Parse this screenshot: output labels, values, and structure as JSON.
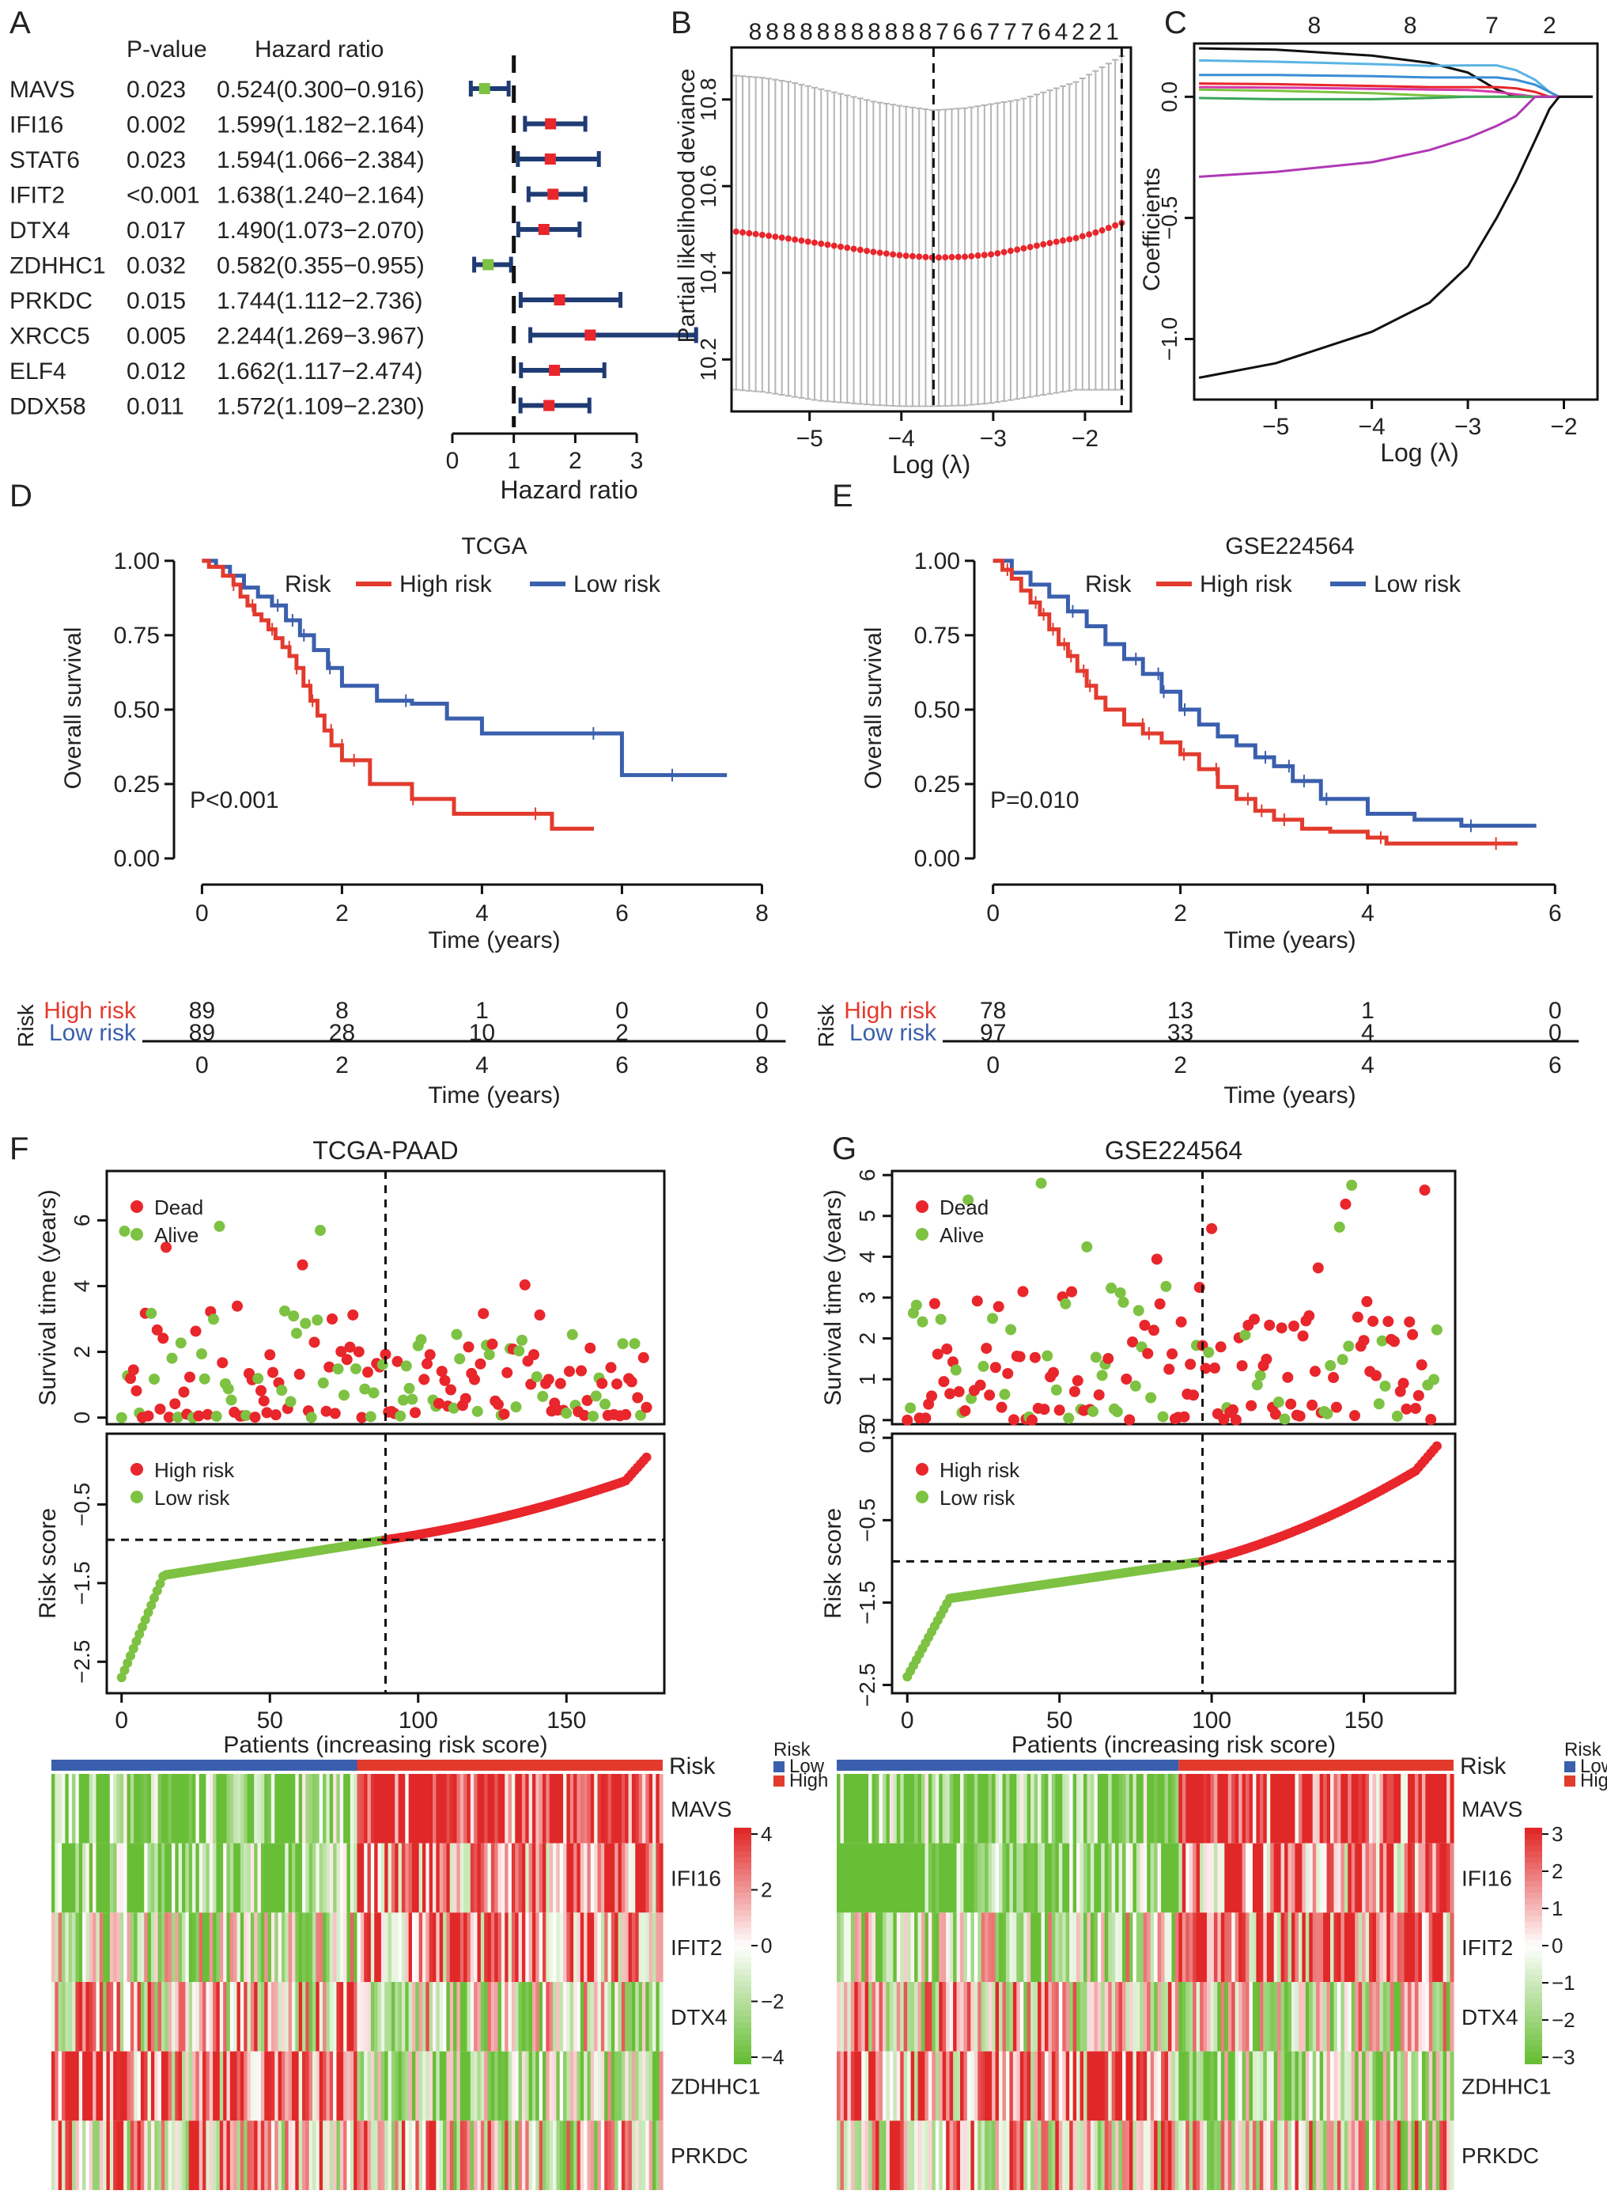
{
  "panels": {
    "A": "A",
    "B": "B",
    "C": "C",
    "D": "D",
    "E": "E",
    "F": "F",
    "G": "G"
  },
  "colors": {
    "red": "#e8262b",
    "blue": "#1f4e9e",
    "green": "#7dc242",
    "navy": "#1f3b73",
    "gray": "#b5b5b5",
    "black": "#111111",
    "blueBar": "#3a5fad",
    "redBar": "#e23b2e"
  },
  "chart_data": [
    {
      "id": "A",
      "type": "forest",
      "headers": {
        "pvalue": "P-value",
        "hr": "Hazard ratio"
      },
      "xlabel": "Hazard ratio",
      "xticks": [
        0,
        1,
        2,
        3
      ],
      "xlim": [
        0,
        3.9
      ],
      "rows": [
        {
          "gene": "MAVS",
          "p": "0.023",
          "ci": "0.524(0.300−0.916)",
          "hr": 0.524,
          "lo": 0.3,
          "hi": 0.916
        },
        {
          "gene": "IFI16",
          "p": "0.002",
          "ci": "1.599(1.182−2.164)",
          "hr": 1.599,
          "lo": 1.182,
          "hi": 2.164
        },
        {
          "gene": "STAT6",
          "p": "0.023",
          "ci": "1.594(1.066−2.384)",
          "hr": 1.594,
          "lo": 1.066,
          "hi": 2.384
        },
        {
          "gene": "IFIT2",
          "p": "<0.001",
          "ci": "1.638(1.240−2.164)",
          "hr": 1.638,
          "lo": 1.24,
          "hi": 2.164
        },
        {
          "gene": "DTX4",
          "p": "0.017",
          "ci": "1.490(1.073−2.070)",
          "hr": 1.49,
          "lo": 1.073,
          "hi": 2.07
        },
        {
          "gene": "ZDHHC1",
          "p": "0.032",
          "ci": "0.582(0.355−0.955)",
          "hr": 0.582,
          "lo": 0.355,
          "hi": 0.955
        },
        {
          "gene": "PRKDC",
          "p": "0.015",
          "ci": "1.744(1.112−2.736)",
          "hr": 1.744,
          "lo": 1.112,
          "hi": 2.736
        },
        {
          "gene": "XRCC5",
          "p": "0.005",
          "ci": "2.244(1.269−3.967)",
          "hr": 2.244,
          "lo": 1.269,
          "hi": 3.967
        },
        {
          "gene": "ELF4",
          "p": "0.012",
          "ci": "1.662(1.117−2.474)",
          "hr": 1.662,
          "lo": 1.117,
          "hi": 2.474
        },
        {
          "gene": "DDX58",
          "p": "0.011",
          "ci": "1.572(1.109−2.230)",
          "hr": 1.572,
          "lo": 1.109,
          "hi": 2.23
        }
      ]
    },
    {
      "id": "B",
      "type": "cv-deviance",
      "top_labels": [
        "8",
        "8",
        "8",
        "8",
        "8",
        "8",
        "8",
        "8",
        "8",
        "8",
        "8",
        "7",
        "6",
        "6",
        "7",
        "7",
        "7",
        "6",
        "4",
        "2",
        "2",
        "1"
      ],
      "xlabel": "Log (λ)",
      "ylabel": "Partial likelihood deviance",
      "xlim": [
        -5.85,
        -1.5
      ],
      "ylim": [
        10.08,
        10.92
      ],
      "xticks": [
        -5,
        -4,
        -3,
        -2
      ],
      "yticks": [
        10.2,
        10.4,
        10.6,
        10.8
      ],
      "vlines": [
        -3.65,
        -1.6
      ],
      "curve_x": [
        -5.8,
        -5.5,
        -5.2,
        -4.9,
        -4.6,
        -4.3,
        -4.0,
        -3.65,
        -3.3,
        -3.0,
        -2.7,
        -2.4,
        -2.1,
        -1.85,
        -1.6
      ],
      "curve_y": [
        10.495,
        10.487,
        10.478,
        10.468,
        10.458,
        10.448,
        10.44,
        10.435,
        10.437,
        10.443,
        10.455,
        10.468,
        10.48,
        10.495,
        10.515
      ],
      "upper": [
        10.855,
        10.85,
        10.84,
        10.825,
        10.81,
        10.795,
        10.785,
        10.775,
        10.78,
        10.79,
        10.8,
        10.82,
        10.84,
        10.87,
        10.9
      ],
      "lower": [
        10.13,
        10.125,
        10.115,
        10.105,
        10.1,
        10.095,
        10.092,
        10.092,
        10.094,
        10.1,
        10.11,
        10.12,
        10.13,
        10.13,
        10.13
      ]
    },
    {
      "id": "C",
      "type": "lasso-path",
      "top_labels": [
        "8",
        "8",
        "7",
        "2"
      ],
      "top_label_x": [
        -4.6,
        -3.6,
        -2.75,
        -2.15
      ],
      "xlabel": "Log (λ)",
      "ylabel": "Coefficients",
      "xlim": [
        -5.85,
        -1.65
      ],
      "ylim": [
        -1.25,
        0.22
      ],
      "xticks": [
        -5,
        -4,
        -3,
        -2
      ],
      "yticks": [
        -1.0,
        -0.5,
        0.0
      ],
      "lambda_x": [
        -5.8,
        -5.0,
        -4.0,
        -3.4,
        -3.0,
        -2.7,
        -2.5,
        -2.3,
        -2.15,
        -2.05,
        -1.7
      ],
      "paths": [
        {
          "color": "#111111",
          "y": [
            0.2,
            0.195,
            0.17,
            0.14,
            0.1,
            0.03,
            0.0,
            0.0,
            0.0,
            0.0,
            0.0
          ]
        },
        {
          "color": "#5bb4e5",
          "y": [
            0.15,
            0.145,
            0.135,
            0.128,
            0.13,
            0.13,
            0.11,
            0.07,
            0.02,
            0.0,
            0.0
          ]
        },
        {
          "color": "#3a8ed6",
          "y": [
            0.09,
            0.09,
            0.085,
            0.08,
            0.08,
            0.08,
            0.07,
            0.05,
            0.02,
            0.0,
            0.0
          ]
        },
        {
          "color": "#e8262b",
          "y": [
            0.055,
            0.052,
            0.045,
            0.04,
            0.04,
            0.04,
            0.035,
            0.02,
            0.0,
            0.0,
            0.0
          ]
        },
        {
          "color": "#d43aa8",
          "y": [
            0.04,
            0.038,
            0.033,
            0.03,
            0.028,
            0.02,
            0.01,
            0.0,
            0.0,
            0.0,
            0.0
          ]
        },
        {
          "color": "#7dc242",
          "y": [
            0.03,
            0.025,
            0.015,
            0.005,
            0.0,
            0.0,
            0.0,
            0.0,
            0.0,
            0.0,
            0.0
          ]
        },
        {
          "color": "#3aa65a",
          "y": [
            -0.005,
            -0.01,
            -0.01,
            -0.005,
            0.0,
            0.0,
            0.0,
            0.0,
            0.0,
            0.0,
            0.0
          ]
        },
        {
          "color": "#b038b5",
          "y": [
            -0.33,
            -0.31,
            -0.27,
            -0.22,
            -0.17,
            -0.12,
            -0.08,
            0.0,
            0.0,
            0.0,
            0.0
          ]
        },
        {
          "color": "#111111",
          "y": [
            -1.16,
            -1.1,
            -0.97,
            -0.85,
            -0.7,
            -0.5,
            -0.35,
            -0.18,
            -0.05,
            0.0,
            0.0
          ]
        }
      ]
    },
    {
      "id": "D",
      "type": "km",
      "title": "TCGA",
      "legend_title": "Risk",
      "legend_high": "High risk",
      "legend_low": "Low risk",
      "xlabel": "Time (years)",
      "ylabel": "Overall survival",
      "pval": "P<0.001",
      "xlim": [
        -0.4,
        8.3
      ],
      "ylim": [
        -0.04,
        1.05
      ],
      "xticks": [
        0,
        2,
        4,
        6,
        8
      ],
      "yticks": [
        "0.00",
        "0.25",
        "0.50",
        "0.75",
        "1.00"
      ],
      "high_t": [
        0,
        0.1,
        0.3,
        0.45,
        0.55,
        0.65,
        0.75,
        0.85,
        0.95,
        1.05,
        1.15,
        1.25,
        1.35,
        1.45,
        1.55,
        1.65,
        1.75,
        1.85,
        2.0,
        2.4,
        3.0,
        3.6,
        5.0,
        5.6
      ],
      "high_s": [
        1.0,
        0.98,
        0.95,
        0.92,
        0.88,
        0.85,
        0.82,
        0.8,
        0.77,
        0.74,
        0.71,
        0.68,
        0.64,
        0.58,
        0.53,
        0.48,
        0.43,
        0.38,
        0.33,
        0.25,
        0.2,
        0.15,
        0.1,
        0.1
      ],
      "low_t": [
        0,
        0.2,
        0.4,
        0.6,
        0.8,
        1.0,
        1.2,
        1.4,
        1.6,
        1.8,
        2.0,
        2.5,
        3.0,
        3.5,
        4.0,
        5.0,
        6.0,
        7.5
      ],
      "low_s": [
        1.0,
        0.98,
        0.95,
        0.91,
        0.88,
        0.85,
        0.8,
        0.75,
        0.7,
        0.64,
        0.58,
        0.53,
        0.52,
        0.47,
        0.42,
        0.42,
        0.28,
        0.28
      ],
      "risk_label": "Risk",
      "risk_rows": [
        {
          "label": "High risk",
          "counts": [
            "89",
            "8",
            "1",
            "0",
            "0"
          ]
        },
        {
          "label": "Low risk",
          "counts": [
            "89",
            "28",
            "10",
            "2",
            "0"
          ]
        }
      ]
    },
    {
      "id": "E",
      "type": "km",
      "title": "GSE224564",
      "legend_title": "Risk",
      "legend_high": "High risk",
      "legend_low": "Low risk",
      "xlabel": "Time (years)",
      "ylabel": "Overall survival",
      "pval": "P=0.010",
      "xlim": [
        -0.2,
        6.2
      ],
      "ylim": [
        -0.04,
        1.05
      ],
      "xticks": [
        0,
        2,
        4,
        6
      ],
      "yticks": [
        "0.00",
        "0.25",
        "0.50",
        "0.75",
        "1.00"
      ],
      "high_t": [
        0,
        0.1,
        0.2,
        0.3,
        0.4,
        0.5,
        0.6,
        0.7,
        0.8,
        0.9,
        1.0,
        1.1,
        1.2,
        1.4,
        1.6,
        1.8,
        2.0,
        2.2,
        2.4,
        2.6,
        2.8,
        3.0,
        3.3,
        3.6,
        4.0,
        4.2,
        5.6
      ],
      "high_s": [
        1.0,
        0.97,
        0.94,
        0.9,
        0.86,
        0.82,
        0.77,
        0.72,
        0.68,
        0.63,
        0.58,
        0.54,
        0.5,
        0.45,
        0.42,
        0.39,
        0.35,
        0.3,
        0.24,
        0.2,
        0.16,
        0.13,
        0.1,
        0.09,
        0.07,
        0.05,
        0.05
      ],
      "low_t": [
        0,
        0.2,
        0.4,
        0.6,
        0.8,
        1.0,
        1.2,
        1.4,
        1.6,
        1.8,
        2.0,
        2.2,
        2.4,
        2.6,
        2.8,
        3.0,
        3.2,
        3.5,
        4.0,
        4.5,
        5.0,
        5.8
      ],
      "low_s": [
        1.0,
        0.96,
        0.92,
        0.88,
        0.83,
        0.78,
        0.72,
        0.67,
        0.62,
        0.56,
        0.5,
        0.45,
        0.41,
        0.38,
        0.34,
        0.31,
        0.26,
        0.2,
        0.15,
        0.13,
        0.11,
        0.11
      ],
      "risk_label": "Risk",
      "risk_rows": [
        {
          "label": "High risk",
          "counts": [
            "78",
            "13",
            "1",
            "0"
          ]
        },
        {
          "label": "Low risk",
          "counts": [
            "97",
            "33",
            "4",
            "0"
          ]
        }
      ]
    },
    {
      "id": "F",
      "type": "risk-plot",
      "title": "TCGA-PAAD",
      "n": 178,
      "cutoff": 89,
      "n_low": 89,
      "dead_label": "Dead",
      "alive_label": "Alive",
      "high_label": "High risk",
      "low_label": "Low risk",
      "surv_ylabel": "Survival time (years)",
      "risk_ylabel": "Risk score",
      "xlabel": "Patients (increasing risk score)",
      "surv_ylim": [
        -0.2,
        7.5
      ],
      "surv_yticks": [
        0,
        2,
        4,
        6
      ],
      "risk_ylim": [
        -2.9,
        0.4
      ],
      "risk_yticks": [
        -2.5,
        -1.5,
        -0.5
      ],
      "risk_cut": -0.95,
      "risk_min": -2.7,
      "risk_max": 0.1,
      "xticks": [
        0,
        50,
        100,
        150
      ],
      "heatmap_genes": [
        "MAVS",
        "IFI16",
        "IFIT2",
        "DTX4",
        "ZDHHC1",
        "PRKDC"
      ],
      "heat_label": "Risk",
      "heat_legend_title": "Risk",
      "heat_low": "Low",
      "heat_high": "High",
      "scale_ticks": [
        "4",
        "2",
        "0",
        "−2",
        "−4"
      ]
    },
    {
      "id": "G",
      "type": "risk-plot",
      "title": "GSE224564",
      "n": 175,
      "cutoff": 97,
      "n_low": 97,
      "dead_label": "Dead",
      "alive_label": "Alive",
      "high_label": "High risk",
      "low_label": "Low risk",
      "surv_ylabel": "Survival time (years)",
      "risk_ylabel": "Risk score",
      "xlabel": "Patients (increasing risk score)",
      "surv_ylim": [
        -0.1,
        6.1
      ],
      "surv_yticks": [
        0,
        1,
        2,
        3,
        4,
        5,
        6
      ],
      "risk_ylim": [
        -2.6,
        0.55
      ],
      "risk_yticks": [
        -2.5,
        -1.5,
        -0.5,
        0.5
      ],
      "risk_cut": -1.0,
      "risk_min": -2.4,
      "risk_max": 0.4,
      "xticks": [
        0,
        50,
        100,
        150
      ],
      "heatmap_genes": [
        "MAVS",
        "IFI16",
        "IFIT2",
        "DTX4",
        "ZDHHC1",
        "PRKDC"
      ],
      "heat_label": "Risk",
      "heat_legend_title": "Risk",
      "heat_low": "Low",
      "heat_high": "High",
      "scale_ticks": [
        "3",
        "2",
        "1",
        "0",
        "−1",
        "−2",
        "−3"
      ]
    }
  ]
}
